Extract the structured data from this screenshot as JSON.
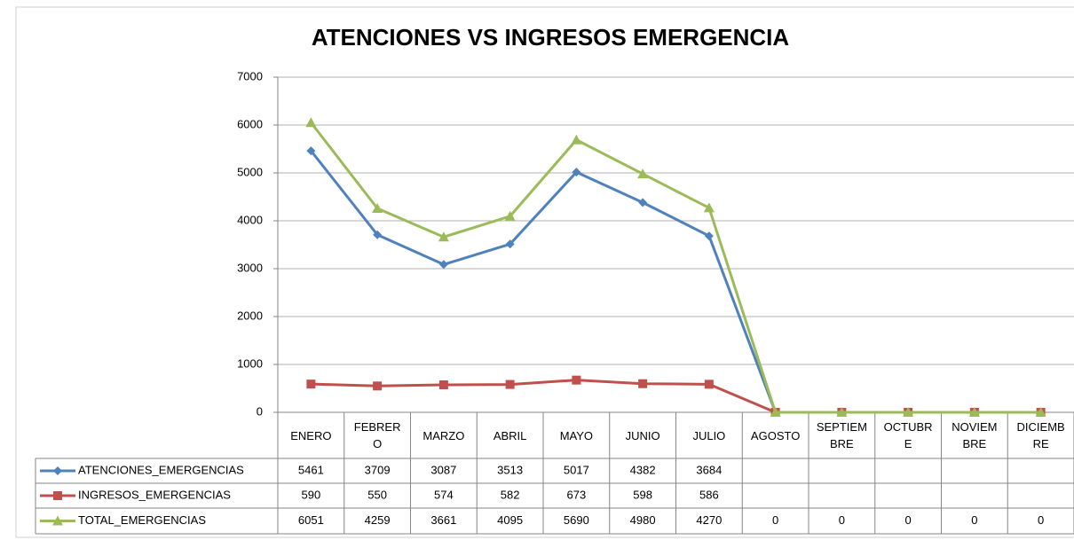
{
  "chart_data": {
    "type": "line",
    "title": "ATENCIONES VS INGRESOS EMERGENCIA",
    "categories": [
      "ENERO",
      "FEBRERO",
      "MARZO",
      "ABRIL",
      "MAYO",
      "JUNIO",
      "JULIO",
      "AGOSTO",
      "SEPTIEMBRE",
      "OCTUBRE",
      "NOVIEMBRE",
      "DICIEMBRE"
    ],
    "series": [
      {
        "name": "ATENCIONES_EMERGENCIAS",
        "color": "#4f81bd",
        "marker": "diamond",
        "values": [
          5461,
          3709,
          3087,
          3513,
          5017,
          4382,
          3684,
          0,
          0,
          0,
          0,
          0
        ],
        "value_labels": [
          "5461",
          "3709",
          "3087",
          "3513",
          "5017",
          "4382",
          "3684",
          null,
          null,
          null,
          null,
          null
        ]
      },
      {
        "name": "INGRESOS_EMERGENCIAS",
        "color": "#c0504d",
        "marker": "square",
        "values": [
          590,
          550,
          574,
          582,
          673,
          598,
          586,
          0,
          0,
          0,
          0,
          0
        ],
        "value_labels": [
          "590",
          "550",
          "574",
          "582",
          "673",
          "598",
          "586",
          null,
          null,
          null,
          null,
          null
        ]
      },
      {
        "name": "TOTAL_EMERGENCIAS",
        "color": "#9bbb59",
        "marker": "triangle",
        "values": [
          6051,
          4259,
          3661,
          4095,
          5690,
          4980,
          4270,
          0,
          0,
          0,
          0,
          0
        ]
      }
    ],
    "ylim": [
      0,
      7000
    ],
    "yticks": [
      0,
      1000,
      2000,
      3000,
      4000,
      5000,
      6000,
      7000
    ],
    "grid": true,
    "legend": "data-table"
  }
}
